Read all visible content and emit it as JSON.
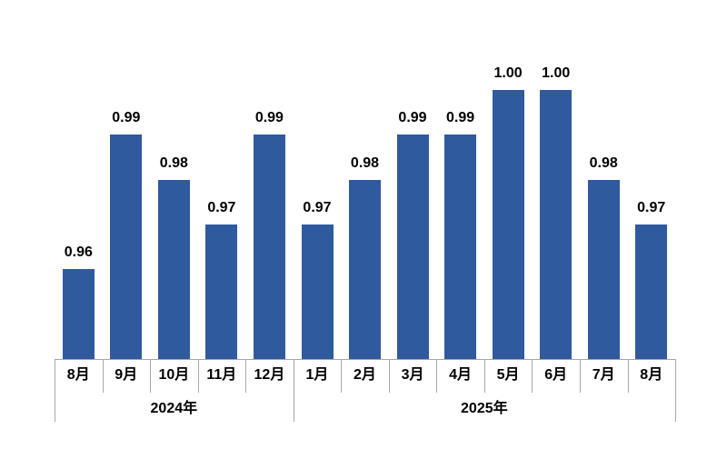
{
  "chart_data": {
    "type": "bar",
    "title": "",
    "xlabel": "",
    "ylabel": "",
    "grid": false,
    "legend": "none",
    "y_axis_visible": false,
    "y_baseline": 0.94,
    "ylim": [
      0.94,
      1.02
    ],
    "categories": [
      "8月",
      "9月",
      "10月",
      "11月",
      "12月",
      "1月",
      "2月",
      "3月",
      "4月",
      "5月",
      "6月",
      "7月",
      "8月"
    ],
    "values": [
      0.96,
      0.99,
      0.98,
      0.97,
      0.99,
      0.97,
      0.98,
      0.99,
      0.99,
      1.0,
      1.0,
      0.98,
      0.97
    ],
    "value_labels": [
      "0.96",
      "0.99",
      "0.98",
      "0.97",
      "0.99",
      "0.97",
      "0.98",
      "0.99",
      "0.99",
      "1.00",
      "1.00",
      "0.98",
      "0.97"
    ],
    "year_groups": [
      {
        "label": "2024年",
        "months": 5
      },
      {
        "label": "2025年",
        "months": 8
      }
    ],
    "colors": {
      "bar": "#2f5a9e",
      "axis": "#a6a6a6",
      "label": "#000000",
      "background": "#ffffff"
    }
  }
}
